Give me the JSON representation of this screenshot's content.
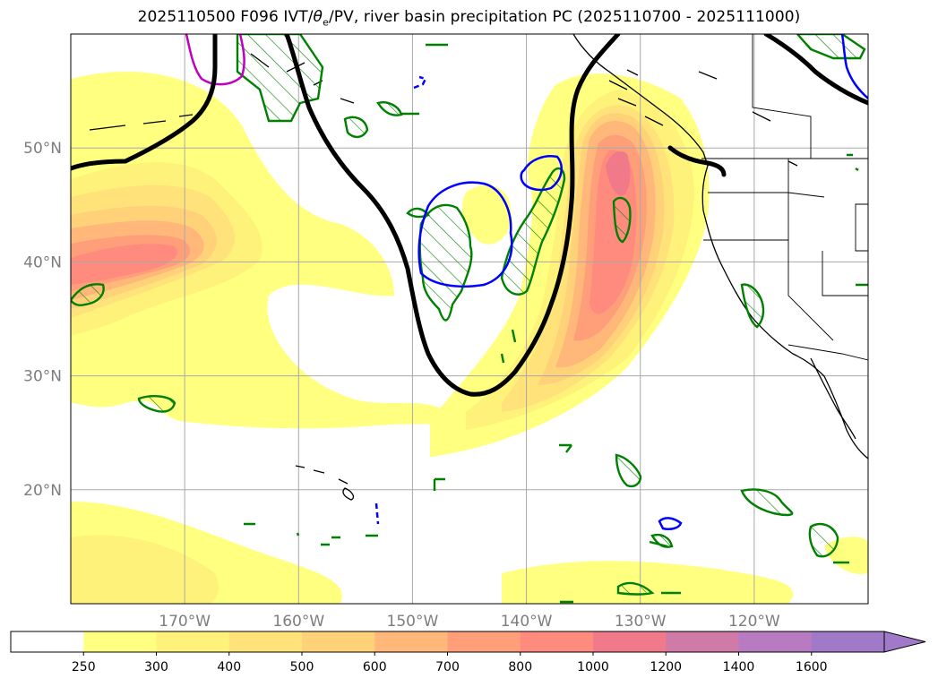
{
  "title": {
    "prefix": "2025110500 F096 IVT/",
    "theta": "θ",
    "theta_sub": "e",
    "suffix": "/PV, river basin precipitation PC (2025110700 - 2025111000)"
  },
  "map": {
    "extent": {
      "lon_min": -180,
      "lon_max": -110,
      "lat_min": 10,
      "lat_max": 60
    },
    "lat_ticks": [
      {
        "value": 50,
        "label": "50°N"
      },
      {
        "value": 40,
        "label": "40°N"
      },
      {
        "value": 30,
        "label": "30°N"
      },
      {
        "value": 20,
        "label": "20°N"
      }
    ],
    "lon_ticks": [
      {
        "value": -170,
        "label": "170°W"
      },
      {
        "value": -160,
        "label": "160°W"
      },
      {
        "value": -150,
        "label": "150°W"
      },
      {
        "value": -140,
        "label": "140°W"
      },
      {
        "value": -130,
        "label": "130°W"
      },
      {
        "value": -120,
        "label": "120°W"
      }
    ],
    "layers": {
      "ivt_fill": "IVT shaded (kg m-1 s-1)",
      "pv_contour_color": "#000000",
      "theta_e_low_color": "#0000ff",
      "theta_e_high_color": "#c000c0",
      "precip_hatch_color": "#008000"
    }
  },
  "colorbar": {
    "ticks": [
      "250",
      "300",
      "400",
      "500",
      "600",
      "700",
      "800",
      "1000",
      "1200",
      "1400",
      "1600"
    ],
    "colors": [
      "#ffffff",
      "#ffff80",
      "#fff27a",
      "#ffe27a",
      "#ffd27a",
      "#ffb87a",
      "#ff9f7a",
      "#ff8a7e",
      "#f07a8a",
      "#d07aa8",
      "#b87ac0",
      "#a07ac8"
    ]
  }
}
